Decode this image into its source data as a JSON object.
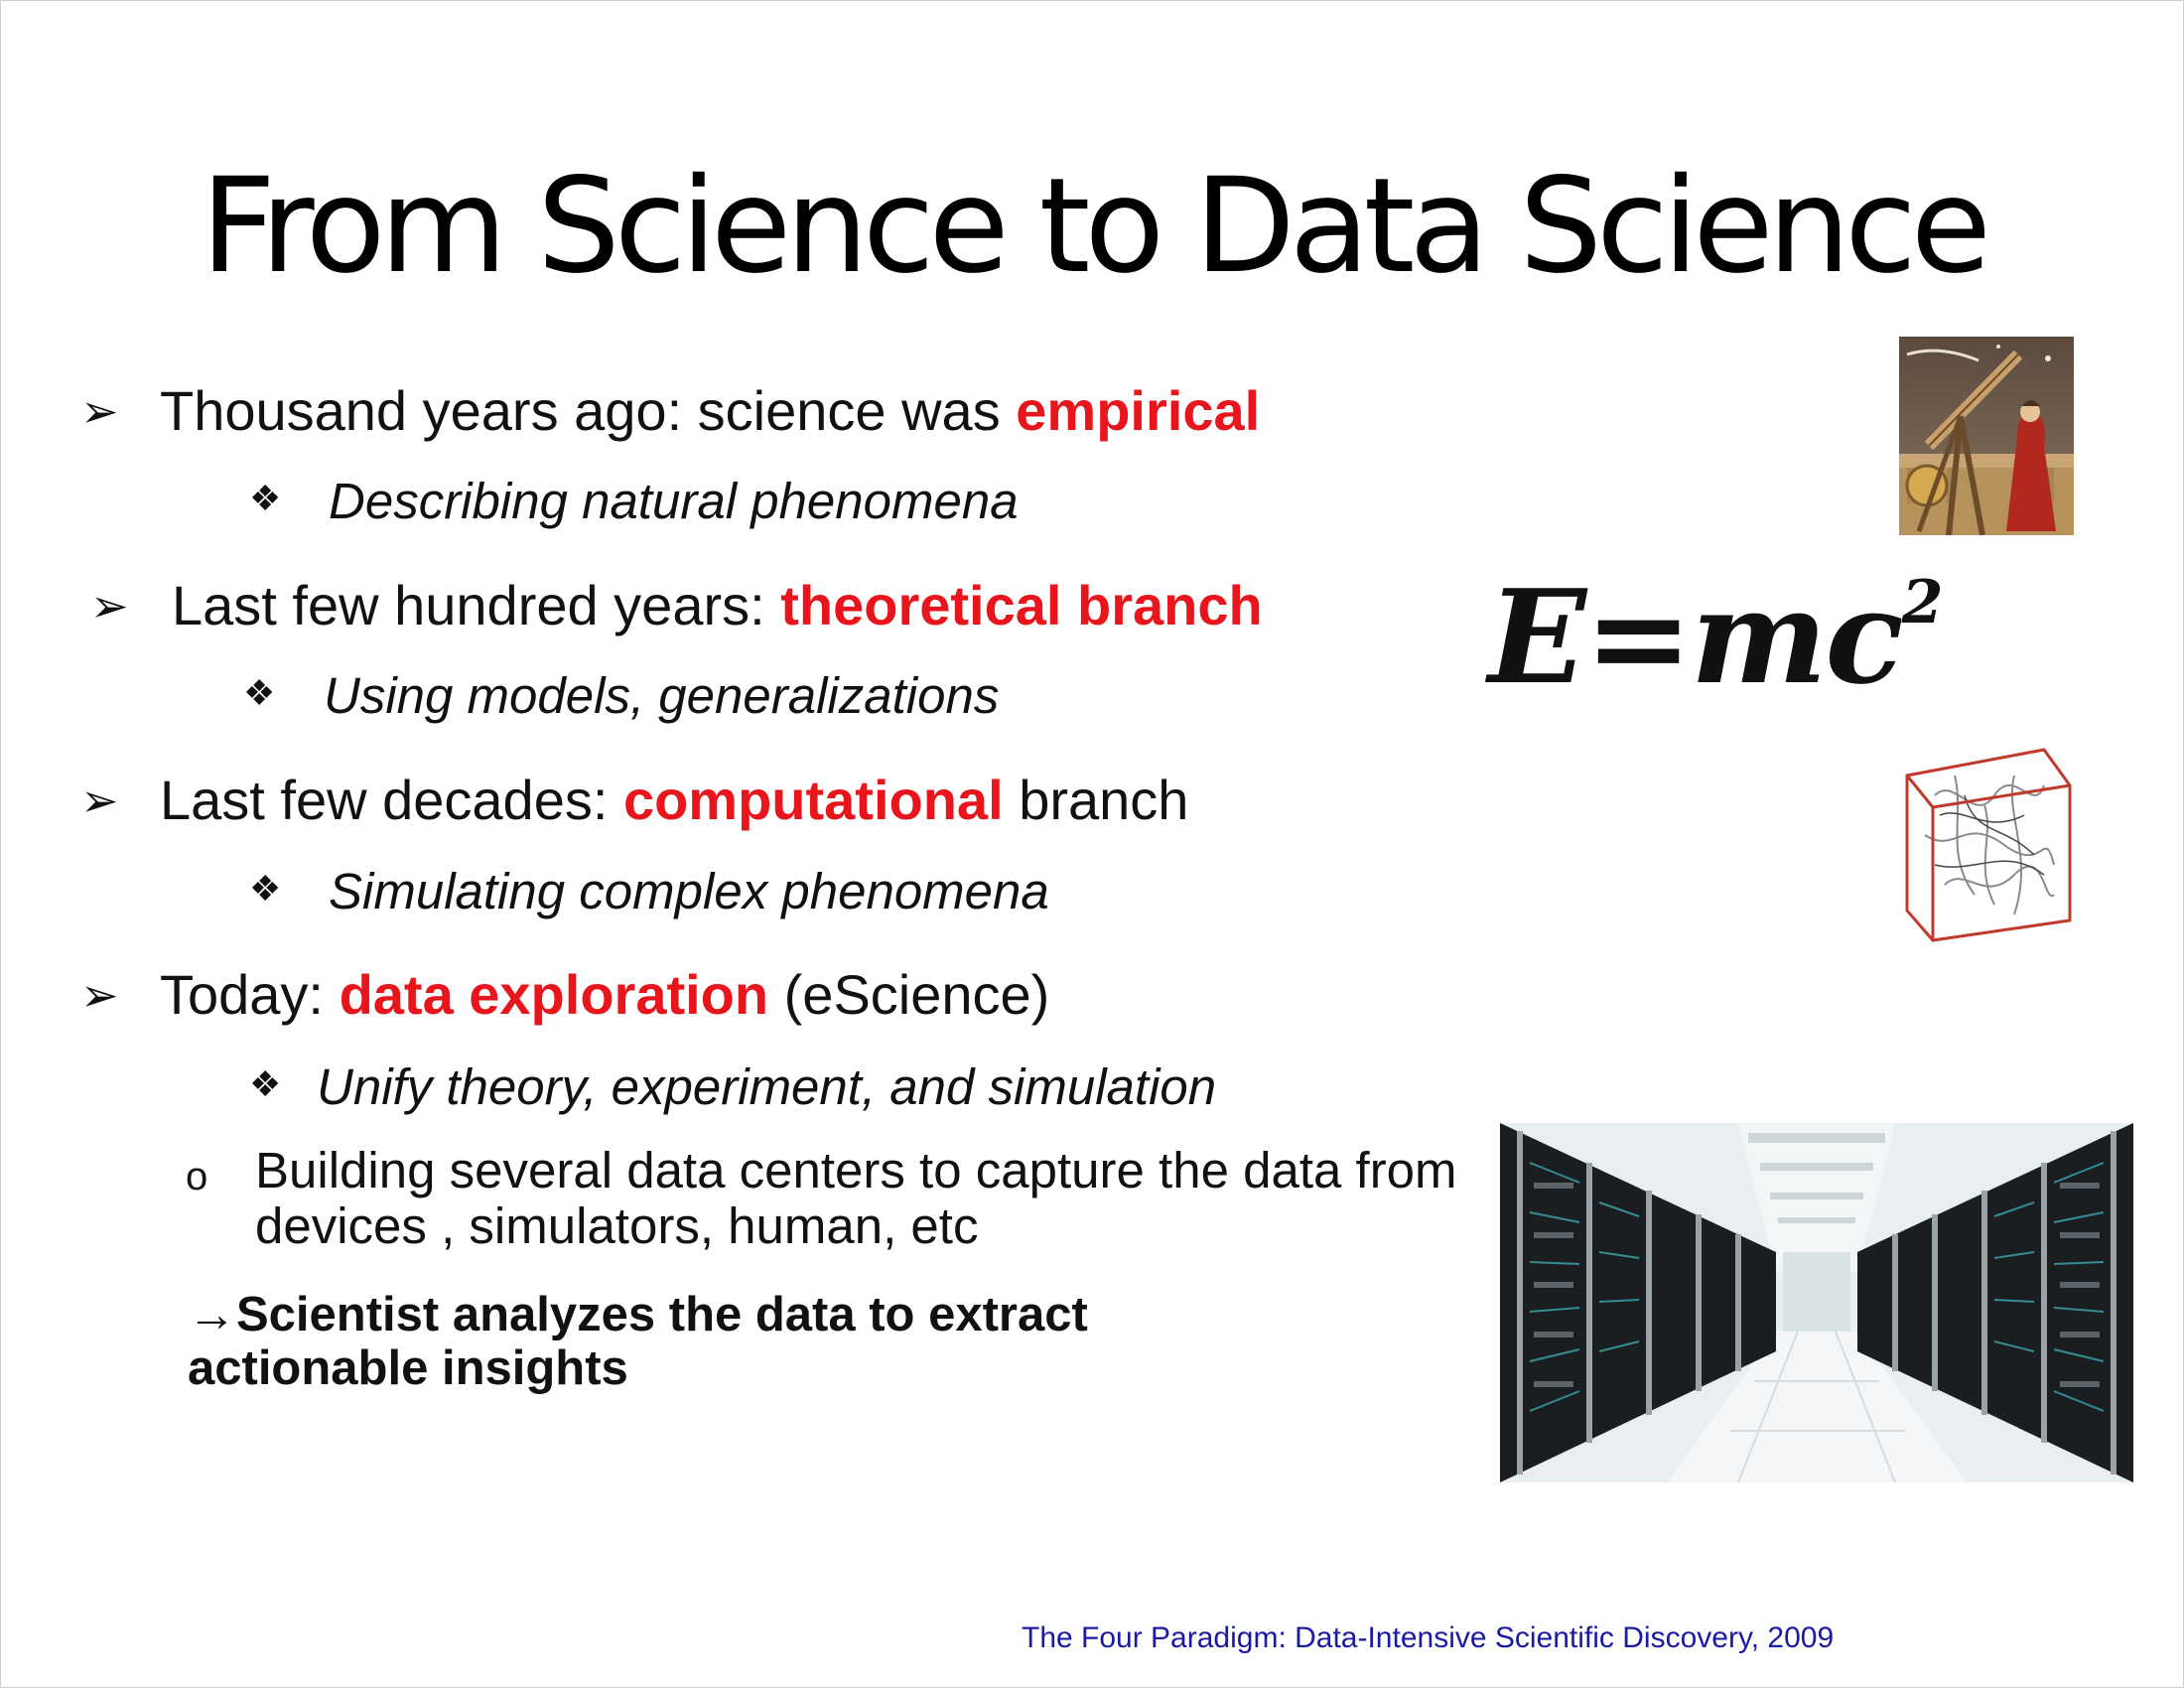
{
  "title": "From Science to Data Science",
  "items": [
    {
      "marker": "➢",
      "pre": "Thousand years ago: science was ",
      "highlight": "empirical",
      "post": "",
      "sub_marker": "❖",
      "sub": "Describing natural phenomena"
    },
    {
      "marker": "➢",
      "pre": "Last few hundred years: ",
      "highlight": "theoretical branch",
      "post": "",
      "sub_marker": "❖",
      "sub": "Using models, generalizations"
    },
    {
      "marker": "➢",
      "pre": "Last few decades: ",
      "highlight": "computational",
      "post": " branch",
      "sub_marker": "❖",
      "sub": "Simulating complex phenomena"
    },
    {
      "marker": "➢",
      "pre": "Today: ",
      "highlight": "data exploration",
      "post": " (eScience)",
      "sub_marker": "❖",
      "sub": "Unify theory, experiment, and simulation"
    }
  ],
  "subpoint": {
    "marker": "o",
    "text": "Building  several data centers to capture the data from devices , simulators, human, etc"
  },
  "insight": {
    "arrow": "→",
    "text": "Scientist analyzes the data to extract actionable insights"
  },
  "equation": {
    "base": "E=mc",
    "exp": "2"
  },
  "footer": "The Four Paradigm: Data-Intensive Scientific Discovery, 2009",
  "images": {
    "astronomer": "telescope-astronomer-image",
    "cube": "simulation-cube-image",
    "datacenter": "server-aisle-image"
  }
}
